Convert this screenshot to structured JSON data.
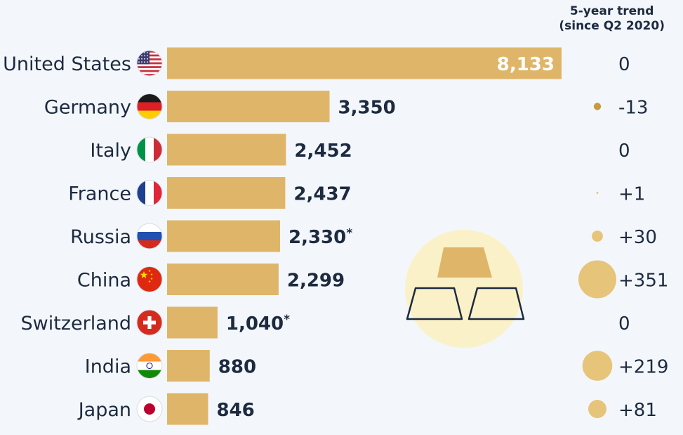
{
  "trend_header": {
    "line1": "5-year trend",
    "line2": "(since Q2 2020)"
  },
  "chart_data": {
    "type": "bar",
    "orientation": "horizontal",
    "categories": [
      "United States",
      "Germany",
      "Italy",
      "France",
      "Russia",
      "China",
      "Switzerland",
      "India",
      "Japan"
    ],
    "values": [
      8133,
      3350,
      2452,
      2437,
      2330,
      2299,
      1040,
      880,
      846
    ],
    "value_labels": [
      "8,133",
      "3,350",
      "2,452",
      "2,437",
      "2,330*",
      "2,299",
      "1,040*",
      "880",
      "846"
    ],
    "trend": [
      0,
      -13,
      0,
      1,
      30,
      351,
      0,
      219,
      81
    ],
    "trend_labels": [
      "0",
      "-13",
      "0",
      "+1",
      "+30",
      "+351",
      "0",
      "+219",
      "+81"
    ],
    "flags": [
      "us-flag",
      "de-flag",
      "it-flag",
      "fr-flag",
      "ru-flag",
      "cn-flag",
      "ch-flag",
      "in-flag",
      "jp-flag"
    ],
    "xlim": [
      0,
      8133
    ],
    "grid": false,
    "colors": {
      "bar": "#dfb669",
      "trend_positive": "#e6c47a",
      "trend_negative": "#c99a3c",
      "label_dark": "#1d2a3f",
      "label_light": "#ffffff",
      "illustration_circle": "#fbf1c8",
      "gold_bar": "#dfb669",
      "outline": "#1d2a3f"
    }
  }
}
